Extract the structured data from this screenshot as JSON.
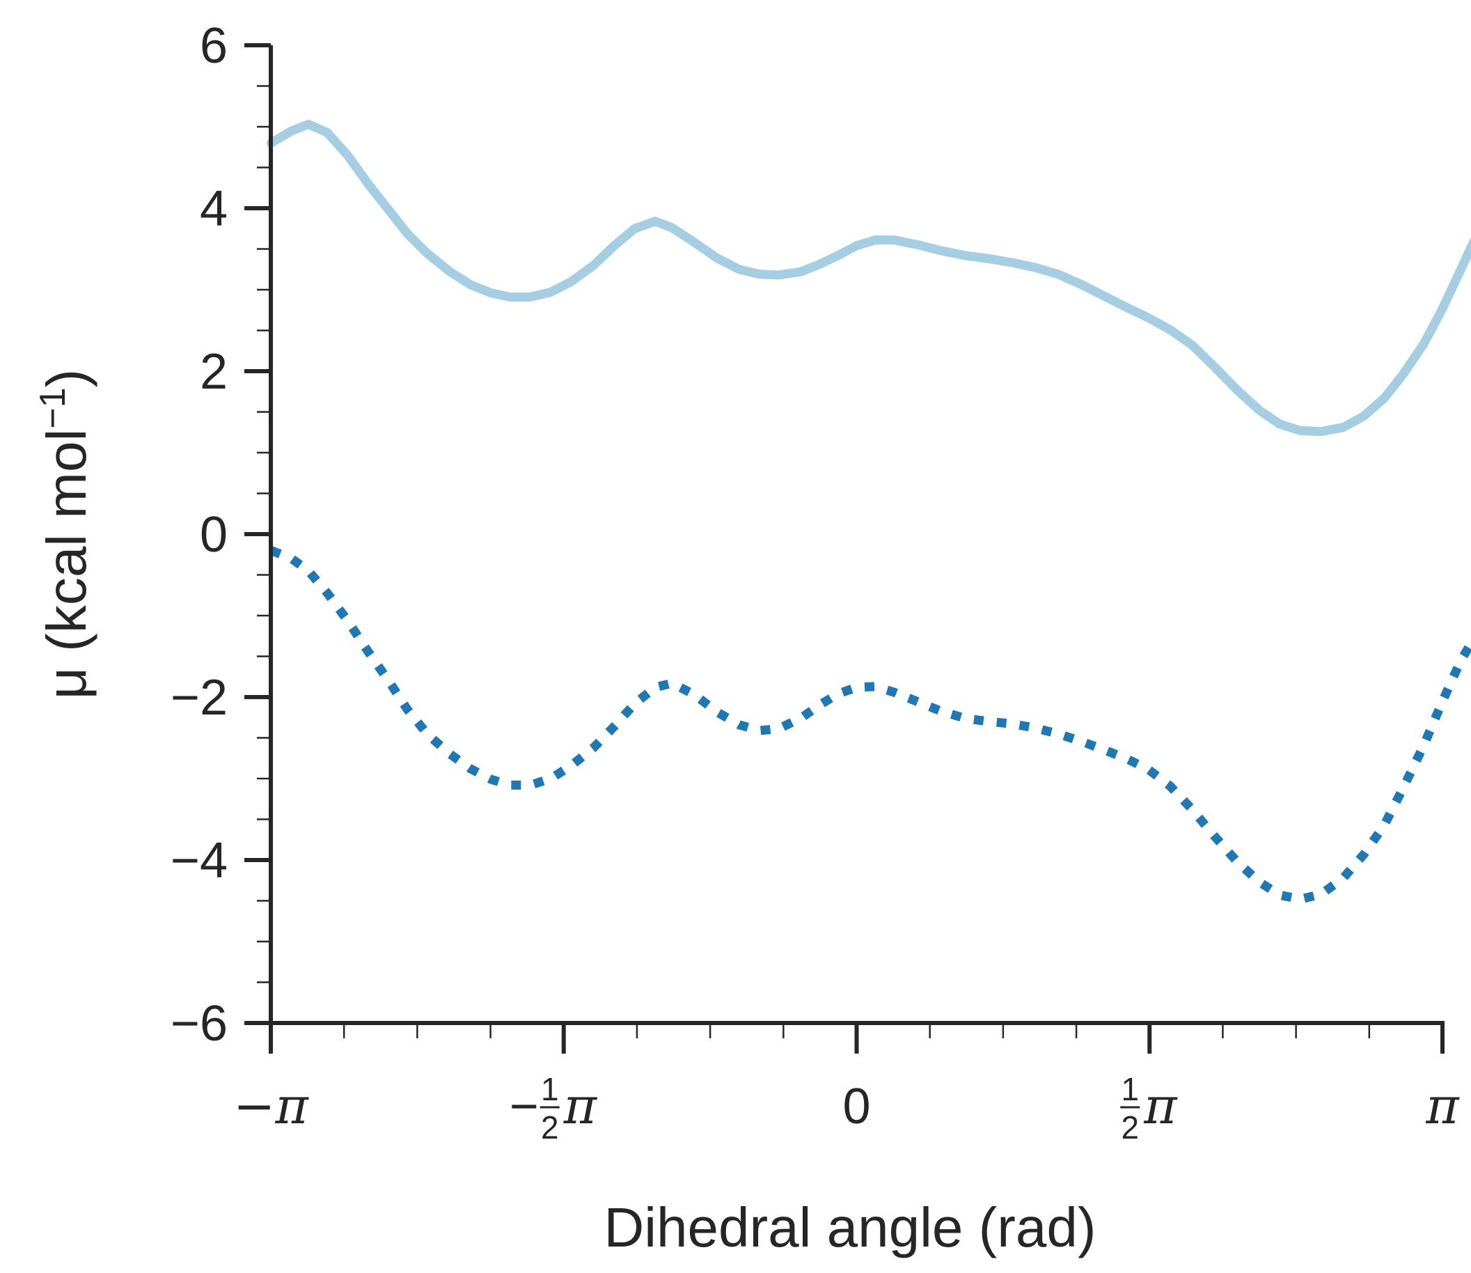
{
  "chart_data": {
    "type": "line",
    "xlabel": "Dihedral angle (rad)",
    "ylabel_main": "μ (kcal mol",
    "ylabel_sup": "−1",
    "ylabel_close": ")",
    "xlim": [
      -3.14159,
      3.14159
    ],
    "ylim": [
      -6,
      6
    ],
    "x_ticks": [
      {
        "value": -3.14159,
        "label": "−π"
      },
      {
        "value": -1.5708,
        "label": "−½π"
      },
      {
        "value": 0,
        "label": "0"
      },
      {
        "value": 1.5708,
        "label": "½π"
      },
      {
        "value": 3.14159,
        "label": "π"
      }
    ],
    "x_minor_ticks": [
      -2.7489,
      -2.3562,
      -1.9635,
      -1.1781,
      -0.7854,
      -0.3927,
      0.3927,
      0.7854,
      1.1781,
      1.9635,
      2.3562,
      2.7489
    ],
    "y_ticks": [
      {
        "value": 6,
        "label": "6"
      },
      {
        "value": 4,
        "label": "4"
      },
      {
        "value": 2,
        "label": "2"
      },
      {
        "value": 0,
        "label": "0"
      },
      {
        "value": -2,
        "label": "−2"
      },
      {
        "value": -4,
        "label": "−4"
      },
      {
        "value": -6,
        "label": "−6"
      }
    ],
    "y_minor_ticks": [
      5.5,
      5,
      4.5,
      3.5,
      3,
      2.5,
      1.5,
      1,
      0.5,
      -0.5,
      -1,
      -1.5,
      -2.5,
      -3,
      -3.5,
      -4.5,
      -5,
      -5.5
    ],
    "series": [
      {
        "color": "#a6cee3",
        "style": "solid",
        "points": [
          [
            -3.14,
            4.8
          ],
          [
            -3.03,
            4.95
          ],
          [
            -2.94,
            5.03
          ],
          [
            -2.84,
            4.93
          ],
          [
            -2.73,
            4.65
          ],
          [
            -2.62,
            4.3
          ],
          [
            -2.51,
            3.98
          ],
          [
            -2.41,
            3.69
          ],
          [
            -2.3,
            3.44
          ],
          [
            -2.18,
            3.22
          ],
          [
            -2.07,
            3.06
          ],
          [
            -1.96,
            2.96
          ],
          [
            -1.86,
            2.91
          ],
          [
            -1.75,
            2.91
          ],
          [
            -1.64,
            2.97
          ],
          [
            -1.53,
            3.1
          ],
          [
            -1.41,
            3.3
          ],
          [
            -1.3,
            3.54
          ],
          [
            -1.19,
            3.75
          ],
          [
            -1.08,
            3.84
          ],
          [
            -0.99,
            3.76
          ],
          [
            -0.87,
            3.58
          ],
          [
            -0.75,
            3.39
          ],
          [
            -0.63,
            3.25
          ],
          [
            -0.52,
            3.19
          ],
          [
            -0.42,
            3.18
          ],
          [
            -0.3,
            3.22
          ],
          [
            -0.2,
            3.31
          ],
          [
            -0.1,
            3.42
          ],
          [
            0,
            3.54
          ],
          [
            0.1,
            3.61
          ],
          [
            0.2,
            3.61
          ],
          [
            0.33,
            3.55
          ],
          [
            0.45,
            3.48
          ],
          [
            0.58,
            3.42
          ],
          [
            0.71,
            3.38
          ],
          [
            0.84,
            3.33
          ],
          [
            0.96,
            3.27
          ],
          [
            1.08,
            3.19
          ],
          [
            1.2,
            3.07
          ],
          [
            1.32,
            2.93
          ],
          [
            1.45,
            2.78
          ],
          [
            1.56,
            2.66
          ],
          [
            1.68,
            2.51
          ],
          [
            1.8,
            2.32
          ],
          [
            1.92,
            2.05
          ],
          [
            2.04,
            1.77
          ],
          [
            2.16,
            1.52
          ],
          [
            2.27,
            1.35
          ],
          [
            2.38,
            1.27
          ],
          [
            2.49,
            1.26
          ],
          [
            2.61,
            1.31
          ],
          [
            2.72,
            1.45
          ],
          [
            2.83,
            1.67
          ],
          [
            2.93,
            1.96
          ],
          [
            3.04,
            2.33
          ],
          [
            3.14,
            2.76
          ],
          [
            3.24,
            3.25
          ],
          [
            3.34,
            3.74
          ]
        ]
      },
      {
        "color": "#1f78b4",
        "style": "dotted",
        "points": [
          [
            -3.14,
            -0.2
          ],
          [
            -3.03,
            -0.3
          ],
          [
            -2.94,
            -0.45
          ],
          [
            -2.84,
            -0.72
          ],
          [
            -2.73,
            -1.06
          ],
          [
            -2.62,
            -1.44
          ],
          [
            -2.51,
            -1.8
          ],
          [
            -2.41,
            -2.15
          ],
          [
            -2.3,
            -2.46
          ],
          [
            -2.18,
            -2.7
          ],
          [
            -2.07,
            -2.88
          ],
          [
            -1.96,
            -3.01
          ],
          [
            -1.86,
            -3.08
          ],
          [
            -1.75,
            -3.08
          ],
          [
            -1.64,
            -3.0
          ],
          [
            -1.53,
            -2.84
          ],
          [
            -1.41,
            -2.62
          ],
          [
            -1.3,
            -2.36
          ],
          [
            -1.19,
            -2.08
          ],
          [
            -1.08,
            -1.88
          ],
          [
            -0.99,
            -1.83
          ],
          [
            -0.87,
            -1.97
          ],
          [
            -0.75,
            -2.18
          ],
          [
            -0.63,
            -2.34
          ],
          [
            -0.52,
            -2.41
          ],
          [
            -0.42,
            -2.39
          ],
          [
            -0.3,
            -2.26
          ],
          [
            -0.2,
            -2.1
          ],
          [
            -0.1,
            -1.96
          ],
          [
            0,
            -1.88
          ],
          [
            0.1,
            -1.87
          ],
          [
            0.2,
            -1.94
          ],
          [
            0.33,
            -2.06
          ],
          [
            0.45,
            -2.17
          ],
          [
            0.58,
            -2.26
          ],
          [
            0.71,
            -2.3
          ],
          [
            0.84,
            -2.33
          ],
          [
            0.96,
            -2.38
          ],
          [
            1.08,
            -2.45
          ],
          [
            1.2,
            -2.54
          ],
          [
            1.32,
            -2.64
          ],
          [
            1.45,
            -2.76
          ],
          [
            1.56,
            -2.88
          ],
          [
            1.68,
            -3.09
          ],
          [
            1.8,
            -3.38
          ],
          [
            1.92,
            -3.71
          ],
          [
            2.04,
            -4.02
          ],
          [
            2.16,
            -4.27
          ],
          [
            2.27,
            -4.43
          ],
          [
            2.38,
            -4.48
          ],
          [
            2.49,
            -4.42
          ],
          [
            2.61,
            -4.22
          ],
          [
            2.72,
            -3.93
          ],
          [
            2.83,
            -3.57
          ],
          [
            2.93,
            -3.12
          ],
          [
            3.04,
            -2.6
          ],
          [
            3.14,
            -2.06
          ],
          [
            3.24,
            -1.55
          ],
          [
            3.34,
            -1.17
          ]
        ]
      }
    ]
  }
}
